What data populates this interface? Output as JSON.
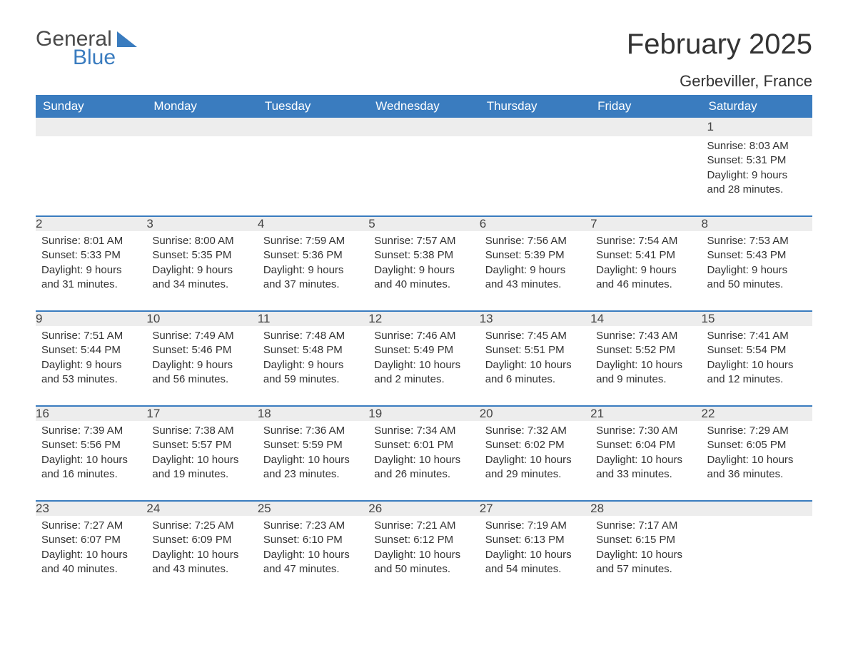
{
  "logo": {
    "word1": "General",
    "word2": "Blue"
  },
  "title": "February 2025",
  "location": "Gerbeviller, France",
  "colors": {
    "header_bg": "#3a7cbf",
    "header_text": "#ffffff",
    "daynum_bg": "#ededed",
    "rule": "#3a7cbf",
    "text": "#333333",
    "logo_gray": "#4a4a4a",
    "logo_blue": "#3a7cbf",
    "page_bg": "#ffffff"
  },
  "typography": {
    "title_fontsize": 40,
    "location_fontsize": 22,
    "header_fontsize": 17,
    "daynum_fontsize": 17,
    "detail_fontsize": 15,
    "font_family": "Arial"
  },
  "weekdays": [
    "Sunday",
    "Monday",
    "Tuesday",
    "Wednesday",
    "Thursday",
    "Friday",
    "Saturday"
  ],
  "weeks": [
    [
      null,
      null,
      null,
      null,
      null,
      null,
      {
        "n": "1",
        "sr": "Sunrise: 8:03 AM",
        "ss": "Sunset: 5:31 PM",
        "d1": "Daylight: 9 hours",
        "d2": "and 28 minutes."
      }
    ],
    [
      {
        "n": "2",
        "sr": "Sunrise: 8:01 AM",
        "ss": "Sunset: 5:33 PM",
        "d1": "Daylight: 9 hours",
        "d2": "and 31 minutes."
      },
      {
        "n": "3",
        "sr": "Sunrise: 8:00 AM",
        "ss": "Sunset: 5:35 PM",
        "d1": "Daylight: 9 hours",
        "d2": "and 34 minutes."
      },
      {
        "n": "4",
        "sr": "Sunrise: 7:59 AM",
        "ss": "Sunset: 5:36 PM",
        "d1": "Daylight: 9 hours",
        "d2": "and 37 minutes."
      },
      {
        "n": "5",
        "sr": "Sunrise: 7:57 AM",
        "ss": "Sunset: 5:38 PM",
        "d1": "Daylight: 9 hours",
        "d2": "and 40 minutes."
      },
      {
        "n": "6",
        "sr": "Sunrise: 7:56 AM",
        "ss": "Sunset: 5:39 PM",
        "d1": "Daylight: 9 hours",
        "d2": "and 43 minutes."
      },
      {
        "n": "7",
        "sr": "Sunrise: 7:54 AM",
        "ss": "Sunset: 5:41 PM",
        "d1": "Daylight: 9 hours",
        "d2": "and 46 minutes."
      },
      {
        "n": "8",
        "sr": "Sunrise: 7:53 AM",
        "ss": "Sunset: 5:43 PM",
        "d1": "Daylight: 9 hours",
        "d2": "and 50 minutes."
      }
    ],
    [
      {
        "n": "9",
        "sr": "Sunrise: 7:51 AM",
        "ss": "Sunset: 5:44 PM",
        "d1": "Daylight: 9 hours",
        "d2": "and 53 minutes."
      },
      {
        "n": "10",
        "sr": "Sunrise: 7:49 AM",
        "ss": "Sunset: 5:46 PM",
        "d1": "Daylight: 9 hours",
        "d2": "and 56 minutes."
      },
      {
        "n": "11",
        "sr": "Sunrise: 7:48 AM",
        "ss": "Sunset: 5:48 PM",
        "d1": "Daylight: 9 hours",
        "d2": "and 59 minutes."
      },
      {
        "n": "12",
        "sr": "Sunrise: 7:46 AM",
        "ss": "Sunset: 5:49 PM",
        "d1": "Daylight: 10 hours",
        "d2": "and 2 minutes."
      },
      {
        "n": "13",
        "sr": "Sunrise: 7:45 AM",
        "ss": "Sunset: 5:51 PM",
        "d1": "Daylight: 10 hours",
        "d2": "and 6 minutes."
      },
      {
        "n": "14",
        "sr": "Sunrise: 7:43 AM",
        "ss": "Sunset: 5:52 PM",
        "d1": "Daylight: 10 hours",
        "d2": "and 9 minutes."
      },
      {
        "n": "15",
        "sr": "Sunrise: 7:41 AM",
        "ss": "Sunset: 5:54 PM",
        "d1": "Daylight: 10 hours",
        "d2": "and 12 minutes."
      }
    ],
    [
      {
        "n": "16",
        "sr": "Sunrise: 7:39 AM",
        "ss": "Sunset: 5:56 PM",
        "d1": "Daylight: 10 hours",
        "d2": "and 16 minutes."
      },
      {
        "n": "17",
        "sr": "Sunrise: 7:38 AM",
        "ss": "Sunset: 5:57 PM",
        "d1": "Daylight: 10 hours",
        "d2": "and 19 minutes."
      },
      {
        "n": "18",
        "sr": "Sunrise: 7:36 AM",
        "ss": "Sunset: 5:59 PM",
        "d1": "Daylight: 10 hours",
        "d2": "and 23 minutes."
      },
      {
        "n": "19",
        "sr": "Sunrise: 7:34 AM",
        "ss": "Sunset: 6:01 PM",
        "d1": "Daylight: 10 hours",
        "d2": "and 26 minutes."
      },
      {
        "n": "20",
        "sr": "Sunrise: 7:32 AM",
        "ss": "Sunset: 6:02 PM",
        "d1": "Daylight: 10 hours",
        "d2": "and 29 minutes."
      },
      {
        "n": "21",
        "sr": "Sunrise: 7:30 AM",
        "ss": "Sunset: 6:04 PM",
        "d1": "Daylight: 10 hours",
        "d2": "and 33 minutes."
      },
      {
        "n": "22",
        "sr": "Sunrise: 7:29 AM",
        "ss": "Sunset: 6:05 PM",
        "d1": "Daylight: 10 hours",
        "d2": "and 36 minutes."
      }
    ],
    [
      {
        "n": "23",
        "sr": "Sunrise: 7:27 AM",
        "ss": "Sunset: 6:07 PM",
        "d1": "Daylight: 10 hours",
        "d2": "and 40 minutes."
      },
      {
        "n": "24",
        "sr": "Sunrise: 7:25 AM",
        "ss": "Sunset: 6:09 PM",
        "d1": "Daylight: 10 hours",
        "d2": "and 43 minutes."
      },
      {
        "n": "25",
        "sr": "Sunrise: 7:23 AM",
        "ss": "Sunset: 6:10 PM",
        "d1": "Daylight: 10 hours",
        "d2": "and 47 minutes."
      },
      {
        "n": "26",
        "sr": "Sunrise: 7:21 AM",
        "ss": "Sunset: 6:12 PM",
        "d1": "Daylight: 10 hours",
        "d2": "and 50 minutes."
      },
      {
        "n": "27",
        "sr": "Sunrise: 7:19 AM",
        "ss": "Sunset: 6:13 PM",
        "d1": "Daylight: 10 hours",
        "d2": "and 54 minutes."
      },
      {
        "n": "28",
        "sr": "Sunrise: 7:17 AM",
        "ss": "Sunset: 6:15 PM",
        "d1": "Daylight: 10 hours",
        "d2": "and 57 minutes."
      },
      null
    ]
  ]
}
